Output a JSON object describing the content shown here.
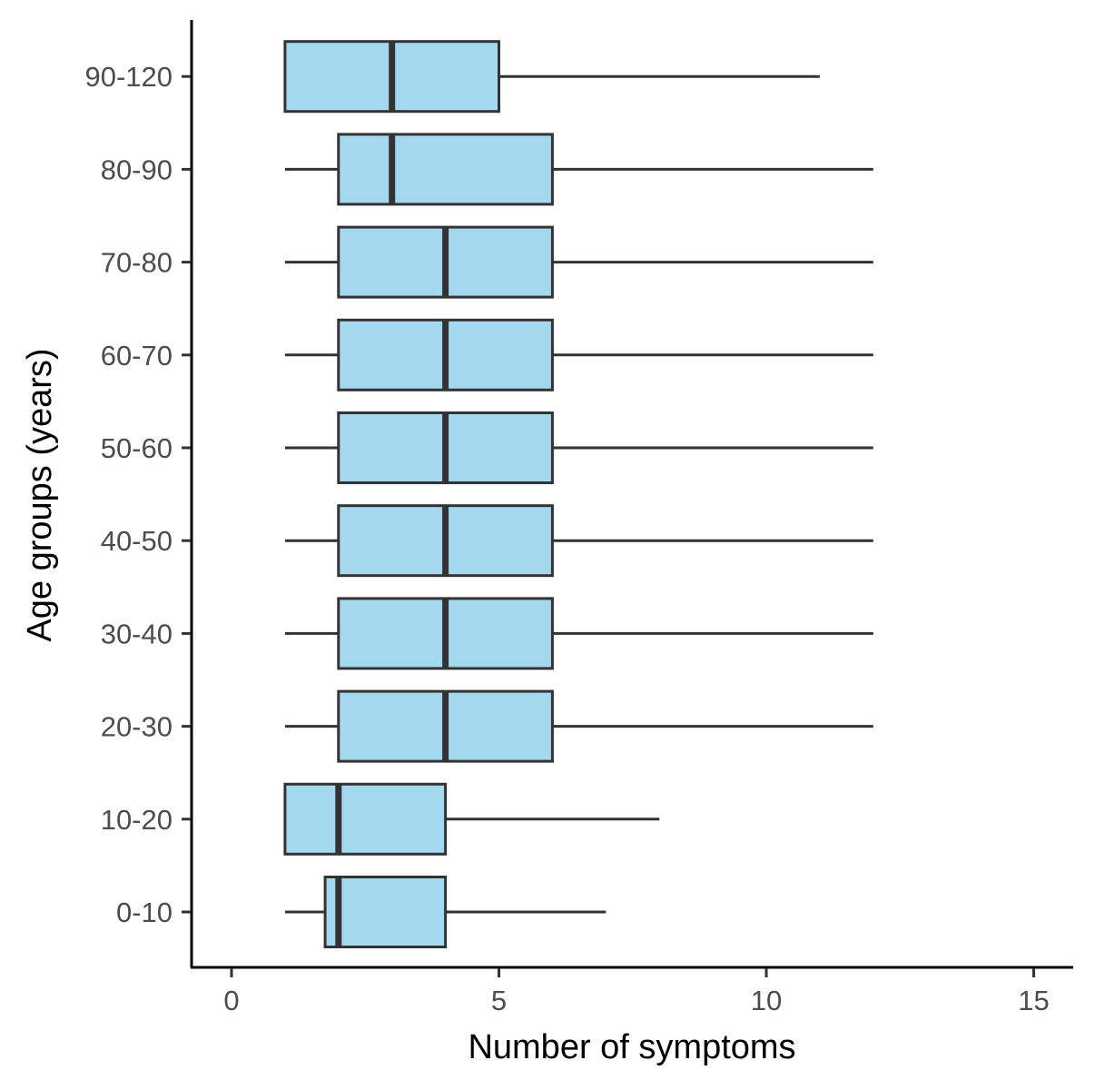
{
  "chart_data": {
    "type": "boxplot",
    "orientation": "horizontal",
    "xlabel": "Number of symptoms",
    "ylabel": "Age groups (years)",
    "xlim": [
      -0.75,
      15.75
    ],
    "xticks": [
      0,
      5,
      10,
      15
    ],
    "grid": false,
    "legend": "none",
    "box_fill": "#a3d8ef",
    "line_color": "#333333",
    "categories": [
      "0-10",
      "10-20",
      "20-30",
      "30-40",
      "40-50",
      "50-60",
      "60-70",
      "70-80",
      "80-90",
      "90-120"
    ],
    "boxes": [
      {
        "category": "0-10",
        "whisker_low": 1,
        "q1": 1.75,
        "median": 2,
        "q3": 4,
        "whisker_high": 7
      },
      {
        "category": "10-20",
        "whisker_low": 1,
        "q1": 1,
        "median": 2,
        "q3": 4,
        "whisker_high": 8
      },
      {
        "category": "20-30",
        "whisker_low": 1,
        "q1": 2,
        "median": 4,
        "q3": 6,
        "whisker_high": 12
      },
      {
        "category": "30-40",
        "whisker_low": 1,
        "q1": 2,
        "median": 4,
        "q3": 6,
        "whisker_high": 12
      },
      {
        "category": "40-50",
        "whisker_low": 1,
        "q1": 2,
        "median": 4,
        "q3": 6,
        "whisker_high": 12
      },
      {
        "category": "50-60",
        "whisker_low": 1,
        "q1": 2,
        "median": 4,
        "q3": 6,
        "whisker_high": 12
      },
      {
        "category": "60-70",
        "whisker_low": 1,
        "q1": 2,
        "median": 4,
        "q3": 6,
        "whisker_high": 12
      },
      {
        "category": "70-80",
        "whisker_low": 1,
        "q1": 2,
        "median": 4,
        "q3": 6,
        "whisker_high": 12
      },
      {
        "category": "80-90",
        "whisker_low": 1,
        "q1": 2,
        "median": 3,
        "q3": 6,
        "whisker_high": 12
      },
      {
        "category": "90-120",
        "whisker_low": 1,
        "q1": 1,
        "median": 3,
        "q3": 5,
        "whisker_high": 11
      }
    ]
  }
}
